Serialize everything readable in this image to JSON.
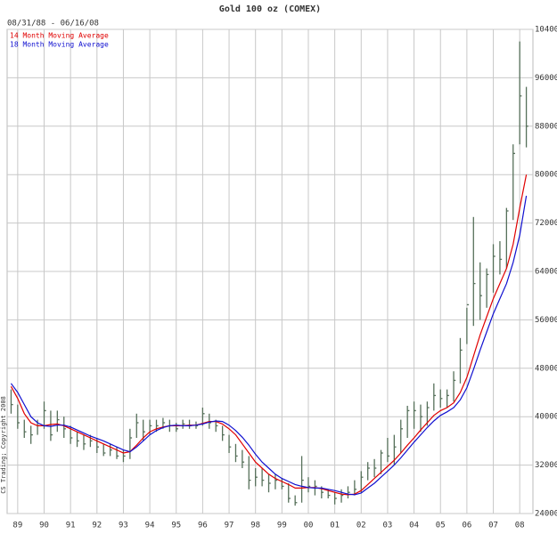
{
  "chart_data": {
    "type": "ohlc",
    "title": "Gold 100 oz (COMEX)",
    "subtitle": "08/31/88 - 06/16/08",
    "annotation": "CS Trading; Copyright 2008",
    "bar_color": "#56705a",
    "grid": true,
    "legend": "top-left",
    "xlim": [
      1988.6,
      2008.5
    ],
    "xticks": [
      {
        "value": 1989,
        "label": "89"
      },
      {
        "value": 1990,
        "label": "90"
      },
      {
        "value": 1991,
        "label": "91"
      },
      {
        "value": 1992,
        "label": "92"
      },
      {
        "value": 1993,
        "label": "93"
      },
      {
        "value": 1994,
        "label": "94"
      },
      {
        "value": 1995,
        "label": "95"
      },
      {
        "value": 1996,
        "label": "96"
      },
      {
        "value": 1997,
        "label": "97"
      },
      {
        "value": 1998,
        "label": "98"
      },
      {
        "value": 1999,
        "label": "99"
      },
      {
        "value": 2000,
        "label": "00"
      },
      {
        "value": 2001,
        "label": "01"
      },
      {
        "value": 2002,
        "label": "02"
      },
      {
        "value": 2003,
        "label": "03"
      },
      {
        "value": 2004,
        "label": "04"
      },
      {
        "value": 2005,
        "label": "05"
      },
      {
        "value": 2006,
        "label": "06"
      },
      {
        "value": 2007,
        "label": "07"
      },
      {
        "value": 2008,
        "label": "08"
      }
    ],
    "ylim": [
      24000,
      104000
    ],
    "yticks": [
      24000,
      32000,
      40000,
      48000,
      56000,
      64000,
      72000,
      80000,
      88000,
      96000,
      104000
    ],
    "x": [
      1988.75,
      1989,
      1989.25,
      1989.5,
      1989.75,
      1990,
      1990.25,
      1990.5,
      1990.75,
      1991,
      1991.25,
      1991.5,
      1991.75,
      1992,
      1992.25,
      1992.5,
      1992.75,
      1993,
      1993.25,
      1993.5,
      1993.75,
      1994,
      1994.25,
      1994.5,
      1994.75,
      1995,
      1995.25,
      1995.5,
      1995.75,
      1996,
      1996.25,
      1996.5,
      1996.75,
      1997,
      1997.25,
      1997.5,
      1997.75,
      1998,
      1998.25,
      1998.5,
      1998.75,
      1999,
      1999.25,
      1999.5,
      1999.75,
      2000,
      2000.25,
      2000.5,
      2000.75,
      2001,
      2001.25,
      2001.5,
      2001.75,
      2002,
      2002.25,
      2002.5,
      2002.75,
      2003,
      2003.25,
      2003.5,
      2003.75,
      2004,
      2004.25,
      2004.5,
      2004.75,
      2005,
      2005.25,
      2005.5,
      2005.75,
      2006,
      2006.25,
      2006.5,
      2006.75,
      2007,
      2007.25,
      2007.5,
      2007.75,
      2008,
      2008.25
    ],
    "high": [
      44500,
      42000,
      39500,
      38500,
      39500,
      42500,
      41000,
      41000,
      40000,
      38500,
      37500,
      37000,
      37000,
      36500,
      35500,
      35500,
      35000,
      34500,
      38000,
      40500,
      39500,
      39500,
      39500,
      39800,
      39500,
      39000,
      39500,
      39500,
      39200,
      41500,
      40500,
      39500,
      38500,
      37000,
      35500,
      34500,
      33500,
      31500,
      31500,
      30500,
      30500,
      29800,
      29000,
      27000,
      33500,
      30000,
      29500,
      28500,
      28000,
      27500,
      28000,
      28500,
      29500,
      31000,
      32500,
      33000,
      34500,
      36500,
      37000,
      39500,
      41800,
      42500,
      42000,
      42500,
      45500,
      44500,
      44500,
      47500,
      53000,
      58000,
      73000,
      65500,
      64500,
      68500,
      69000,
      74500,
      85000,
      102000,
      94500
    ],
    "low": [
      40500,
      38000,
      36500,
      35500,
      37000,
      38000,
      36000,
      37500,
      36500,
      35500,
      35000,
      34500,
      35000,
      34000,
      33500,
      33500,
      33000,
      32500,
      33000,
      36500,
      36000,
      37000,
      37500,
      38000,
      37500,
      37500,
      38000,
      38000,
      38000,
      38500,
      38000,
      37500,
      36000,
      34000,
      32500,
      31500,
      28000,
      28500,
      28500,
      27500,
      28000,
      28000,
      25800,
      25300,
      25800,
      27500,
      27000,
      26500,
      26500,
      25500,
      25800,
      26500,
      27000,
      27500,
      29500,
      30000,
      30500,
      32500,
      32000,
      34000,
      36500,
      38000,
      37500,
      38500,
      41000,
      41500,
      41500,
      42500,
      45500,
      52000,
      55000,
      56000,
      58000,
      60500,
      63500,
      64500,
      72500,
      85000,
      84500
    ],
    "close": [
      42000,
      39000,
      37500,
      37000,
      38500,
      41000,
      37000,
      39500,
      38000,
      36500,
      36000,
      35500,
      36000,
      35000,
      34000,
      34500,
      33500,
      33500,
      36500,
      39000,
      37500,
      38500,
      38500,
      39000,
      38500,
      38000,
      38800,
      38500,
      38500,
      40500,
      39000,
      38500,
      37000,
      35000,
      33500,
      32500,
      29500,
      30000,
      29500,
      29000,
      29500,
      28500,
      26500,
      25800,
      29500,
      28500,
      28500,
      27500,
      27000,
      26500,
      27000,
      27500,
      28000,
      30000,
      31500,
      31500,
      34000,
      33500,
      35000,
      38000,
      41000,
      41000,
      40000,
      41500,
      43500,
      43000,
      43500,
      46000,
      51000,
      58500,
      62000,
      60000,
      63500,
      66500,
      66000,
      74000,
      83500,
      93000,
      88000
    ],
    "series": [
      {
        "name": "14 Month Moving Average",
        "color": "#e00000",
        "values": [
          45000,
          43000,
          40500,
          39000,
          38500,
          38500,
          38700,
          38800,
          38500,
          38000,
          37500,
          37000,
          36500,
          36000,
          35500,
          35000,
          34500,
          34000,
          34200,
          35300,
          36500,
          37500,
          38000,
          38300,
          38500,
          38500,
          38500,
          38600,
          38600,
          38900,
          39200,
          39200,
          38800,
          38000,
          37000,
          35500,
          34000,
          32500,
          31500,
          30500,
          29800,
          29300,
          28800,
          28200,
          28200,
          28300,
          28300,
          28100,
          27800,
          27500,
          27200,
          27100,
          27200,
          27800,
          28800,
          29800,
          30800,
          31800,
          32800,
          34000,
          35300,
          36500,
          37800,
          39000,
          40200,
          41000,
          41500,
          42300,
          44000,
          46500,
          50000,
          53500,
          56500,
          59500,
          62000,
          64500,
          68500,
          74500,
          80000
        ]
      },
      {
        "name": "18 Month Moving Average",
        "color": "#1010d0",
        "values": [
          45500,
          44000,
          42000,
          40000,
          39000,
          38500,
          38400,
          38600,
          38600,
          38300,
          37800,
          37300,
          36800,
          36400,
          36000,
          35500,
          35000,
          34500,
          34200,
          35000,
          36000,
          37000,
          37700,
          38200,
          38500,
          38600,
          38500,
          38500,
          38600,
          38800,
          39100,
          39300,
          39200,
          38600,
          37700,
          36600,
          35300,
          33800,
          32500,
          31500,
          30500,
          29800,
          29300,
          28800,
          28500,
          28300,
          28200,
          28200,
          28000,
          27800,
          27500,
          27200,
          27100,
          27400,
          28200,
          29000,
          30000,
          31000,
          32000,
          33200,
          34500,
          35800,
          37000,
          38200,
          39300,
          40200,
          40800,
          41500,
          42800,
          44800,
          47800,
          51000,
          54000,
          57000,
          59500,
          62000,
          65500,
          70000,
          76500
        ]
      }
    ]
  }
}
